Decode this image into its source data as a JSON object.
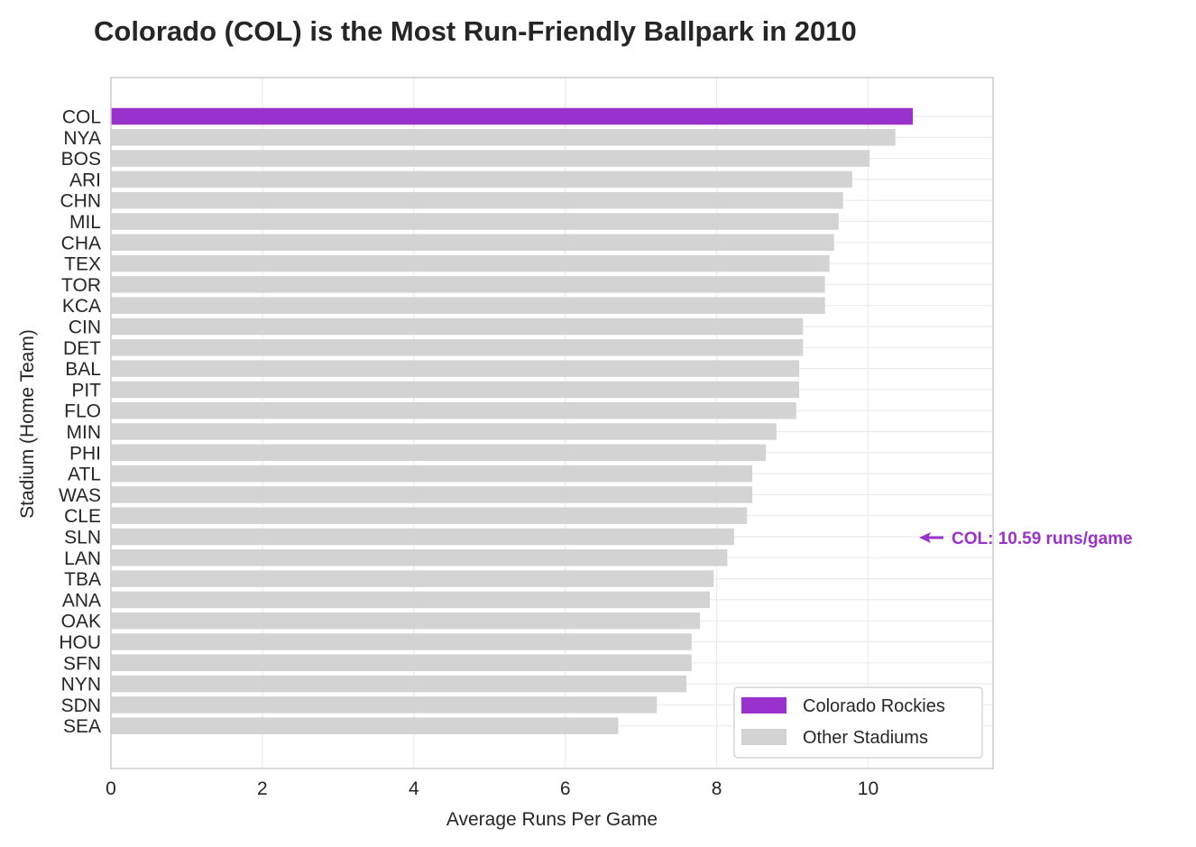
{
  "chart_data": {
    "type": "bar",
    "orientation": "horizontal",
    "title": "Colorado (COL) is the Most Run-Friendly Ballpark in 2010",
    "xlabel": "Average Runs Per Game",
    "ylabel": "Stadium (Home Team)",
    "xlim": [
      0,
      11.65
    ],
    "xticks": [
      0,
      2,
      4,
      6,
      8,
      10
    ],
    "grid": true,
    "legend_position": "lower right",
    "categories": [
      "COL",
      "NYA",
      "BOS",
      "ARI",
      "CHN",
      "MIL",
      "CHA",
      "TEX",
      "TOR",
      "KCA",
      "CIN",
      "DET",
      "BAL",
      "PIT",
      "FLO",
      "MIN",
      "PHI",
      "ATL",
      "WAS",
      "CLE",
      "SLN",
      "LAN",
      "TBA",
      "ANA",
      "OAK",
      "HOU",
      "SFN",
      "NYN",
      "SDN",
      "SEA"
    ],
    "values": [
      10.59,
      10.36,
      10.02,
      9.79,
      9.67,
      9.61,
      9.55,
      9.49,
      9.43,
      9.43,
      9.14,
      9.14,
      9.09,
      9.09,
      9.05,
      8.79,
      8.65,
      8.47,
      8.47,
      8.4,
      8.23,
      8.14,
      7.96,
      7.91,
      7.78,
      7.67,
      7.67,
      7.6,
      7.21,
      6.7
    ],
    "highlight_category": "COL",
    "colors": {
      "highlight": "#9932CC",
      "other": "#D3D3D3",
      "grid": "#EBEBEB",
      "frame": "#CCCCCC"
    },
    "legend": [
      {
        "label": "Colorado Rockies",
        "color": "#9932CC"
      },
      {
        "label": "Other Stadiums",
        "color": "#D3D3D3"
      }
    ],
    "annotation": {
      "text": "COL: 10.59 runs/game",
      "color": "#9932CC",
      "arrow": "left"
    }
  }
}
